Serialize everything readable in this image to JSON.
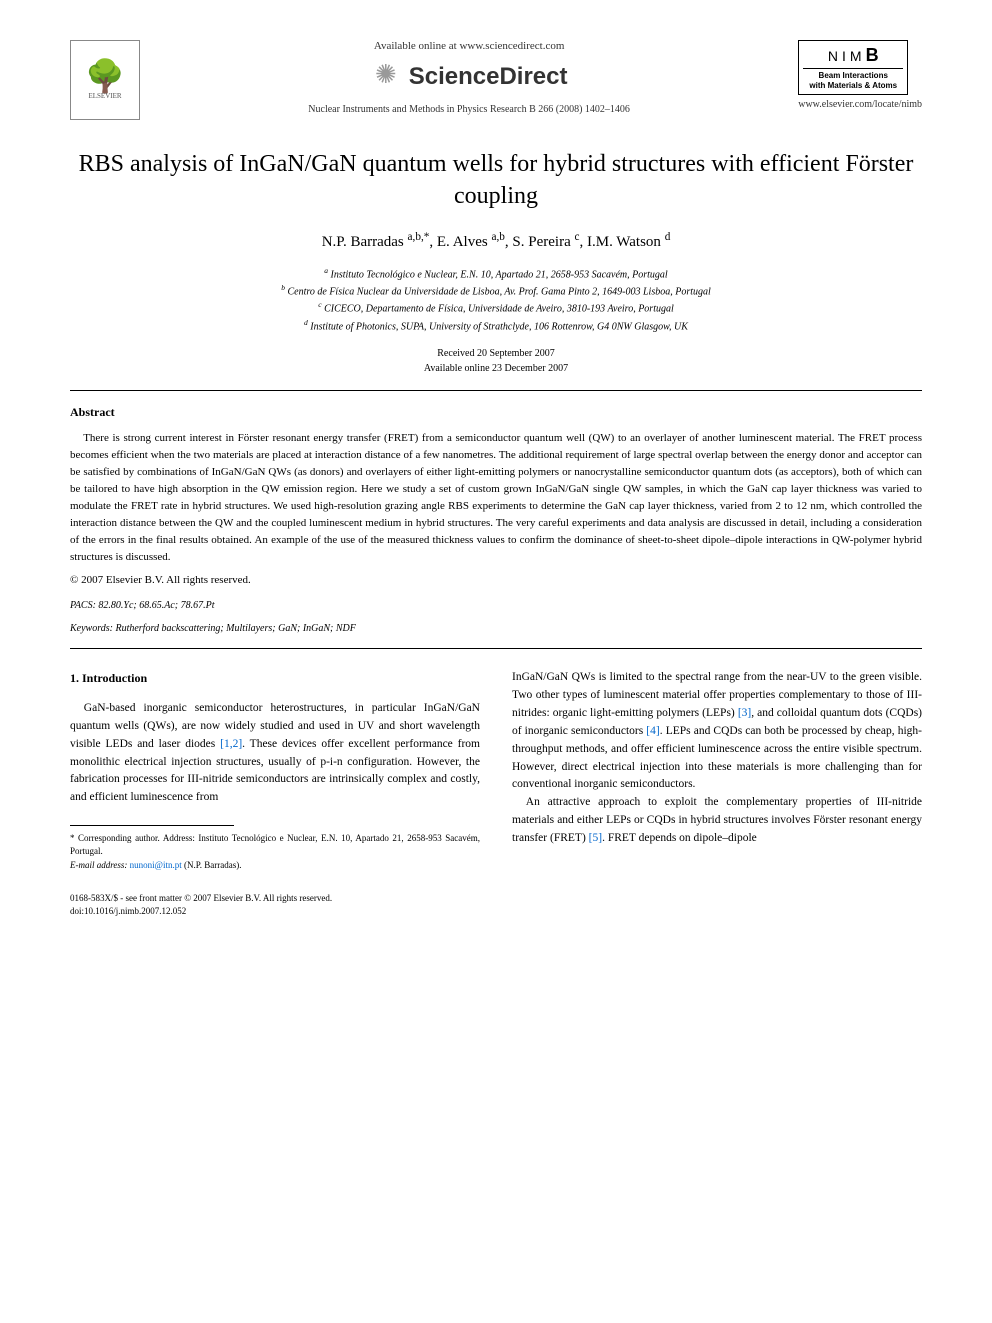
{
  "header": {
    "available_online": "Available online at www.sciencedirect.com",
    "sciencedirect": "ScienceDirect",
    "journal_ref": "Nuclear Instruments and Methods in Physics Research B 266 (2008) 1402–1406",
    "elsevier_label": "ELSEVIER",
    "nimb": {
      "title_letters": "NIM",
      "title_bold": "B",
      "sub1": "Beam Interactions",
      "sub2": "with Materials & Atoms"
    },
    "journal_url": "www.elsevier.com/locate/nimb"
  },
  "title": "RBS analysis of InGaN/GaN quantum wells for hybrid structures with efficient Förster coupling",
  "authors_html": "N.P. Barradas <sup>a,b,*</sup>, E. Alves <sup>a,b</sup>, S. Pereira <sup>c</sup>, I.M. Watson <sup>d</sup>",
  "affiliations": [
    "a Instituto Tecnológico e Nuclear, E.N. 10, Apartado 21, 2658-953 Sacavém, Portugal",
    "b Centro de Física Nuclear da Universidade de Lisboa, Av. Prof. Gama Pinto 2, 1649-003 Lisboa, Portugal",
    "c CICECO, Departamento de Física, Universidade de Aveiro, 3810-193 Aveiro, Portugal",
    "d Institute of Photonics, SUPA, University of Strathclyde, 106 Rottenrow, G4 0NW Glasgow, UK"
  ],
  "dates": {
    "received": "Received 20 September 2007",
    "available": "Available online 23 December 2007"
  },
  "abstract": {
    "heading": "Abstract",
    "text": "There is strong current interest in Förster resonant energy transfer (FRET) from a semiconductor quantum well (QW) to an overlayer of another luminescent material. The FRET process becomes efficient when the two materials are placed at interaction distance of a few nanometres. The additional requirement of large spectral overlap between the energy donor and acceptor can be satisfied by combinations of InGaN/GaN QWs (as donors) and overlayers of either light-emitting polymers or nanocrystalline semiconductor quantum dots (as acceptors), both of which can be tailored to have high absorption in the QW emission region. Here we study a set of custom grown InGaN/GaN single QW samples, in which the GaN cap layer thickness was varied to modulate the FRET rate in hybrid structures. We used high-resolution grazing angle RBS experiments to determine the GaN cap layer thickness, varied from 2 to 12 nm, which controlled the interaction distance between the QW and the coupled luminescent medium in hybrid structures. The very careful experiments and data analysis are discussed in detail, including a consideration of the errors in the final results obtained. An example of the use of the measured thickness values to confirm the dominance of sheet-to-sheet dipole–dipole interactions in QW-polymer hybrid structures is discussed.",
    "copyright": "© 2007 Elsevier B.V. All rights reserved."
  },
  "pacs": "PACS: 82.80.Yc; 68.65.Ac; 78.67.Pt",
  "keywords": "Keywords: Rutherford backscattering; Multilayers; GaN; InGaN; NDF",
  "introduction": {
    "heading": "1. Introduction",
    "col1_p1_pre": "GaN-based inorganic semiconductor heterostructures, in particular InGaN/GaN quantum wells (QWs), are now widely studied and used in UV and short wavelength visible LEDs and laser diodes ",
    "col1_ref1": "[1,2]",
    "col1_p1_post": ". These devices offer excellent performance from monolithic electrical injection structures, usually of p-i-n configuration. However, the fabrication processes for III-nitride semiconductors are intrinsically complex and costly, and efficient luminescence from",
    "col2_p1_pre": "InGaN/GaN QWs is limited to the spectral range from the near-UV to the green visible. Two other types of luminescent material offer properties complementary to those of III-nitrides: organic light-emitting polymers (LEPs) ",
    "col2_ref3": "[3]",
    "col2_p1_mid": ", and colloidal quantum dots (CQDs) of inorganic semiconductors ",
    "col2_ref4": "[4]",
    "col2_p1_post": ". LEPs and CQDs can both be processed by cheap, high-throughput methods, and offer efficient luminescence across the entire visible spectrum. However, direct electrical injection into these materials is more challenging than for conventional inorganic semiconductors.",
    "col2_p2_pre": "An attractive approach to exploit the complementary properties of III-nitride materials and either LEPs or CQDs in hybrid structures involves Förster resonant energy transfer (FRET) ",
    "col2_ref5": "[5]",
    "col2_p2_post": ". FRET depends on dipole–dipole"
  },
  "footnote": {
    "corr": "* Corresponding author. Address: Instituto Tecnológico e Nuclear, E.N. 10, Apartado 21, 2658-953 Sacavém, Portugal.",
    "email_label": "E-mail address: ",
    "email": "nunoni@itn.pt",
    "email_who": " (N.P. Barradas)."
  },
  "footer": {
    "line1": "0168-583X/$ - see front matter © 2007 Elsevier B.V. All rights reserved.",
    "line2": "doi:10.1016/j.nimb.2007.12.052"
  }
}
